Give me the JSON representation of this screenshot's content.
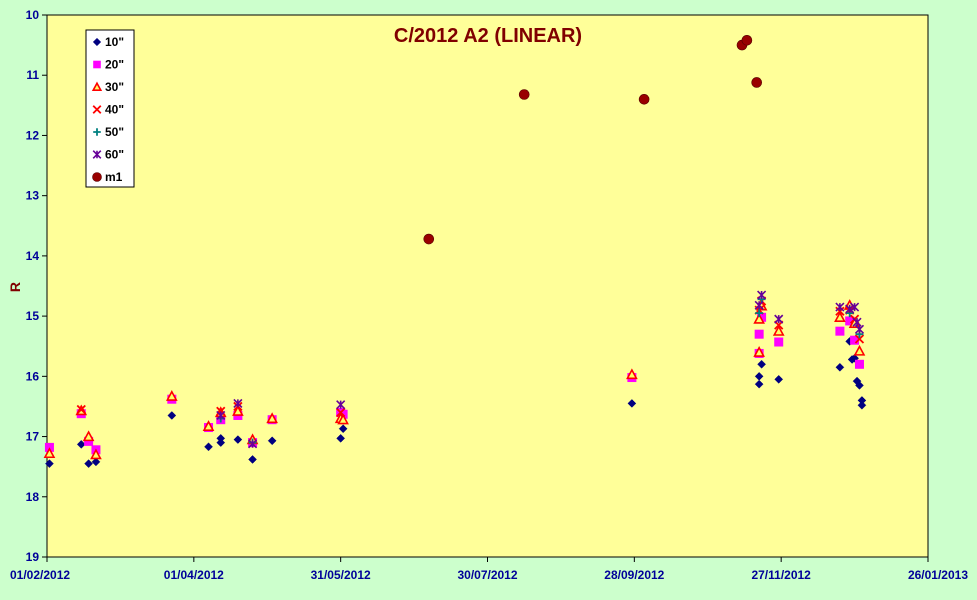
{
  "chart_data": {
    "type": "scatter",
    "title": "C/2012 A2 (LINEAR)",
    "xlabel": "",
    "ylabel": "R",
    "x_axis": {
      "type": "date",
      "range": [
        "2012-02-01",
        "2013-01-26"
      ],
      "tick_labels": [
        "01/02/2012",
        "01/04/2012",
        "31/05/2012",
        "30/07/2012",
        "28/09/2012",
        "27/11/2012",
        "26/01/2013"
      ]
    },
    "y_axis": {
      "inverted": true,
      "range": [
        10,
        19
      ],
      "tick_labels": [
        "10",
        "11",
        "12",
        "13",
        "14",
        "15",
        "16",
        "17",
        "18",
        "19"
      ]
    },
    "plot_background": "#ffff99",
    "page_background": "#ccffcc",
    "grid": false,
    "legend_position": "top-left",
    "series": [
      {
        "name": "10\"",
        "marker": "diamond",
        "color": "#000080",
        "points": [
          [
            "2012-02-02",
            17.45
          ],
          [
            "2012-02-15",
            17.13
          ],
          [
            "2012-02-18",
            17.45
          ],
          [
            "2012-02-21",
            17.42
          ],
          [
            "2012-03-23",
            16.65
          ],
          [
            "2012-04-07",
            17.17
          ],
          [
            "2012-04-12",
            17.03
          ],
          [
            "2012-04-12",
            17.1
          ],
          [
            "2012-04-19",
            17.05
          ],
          [
            "2012-04-25",
            17.38
          ],
          [
            "2012-05-03",
            17.07
          ],
          [
            "2012-05-31",
            17.03
          ],
          [
            "2012-06-01",
            16.87
          ],
          [
            "2012-09-27",
            16.45
          ],
          [
            "2012-11-18",
            16.0
          ],
          [
            "2012-11-18",
            16.13
          ],
          [
            "2012-11-19",
            15.8
          ],
          [
            "2012-11-26",
            16.05
          ],
          [
            "2012-12-21",
            15.85
          ],
          [
            "2012-12-25",
            15.42
          ],
          [
            "2012-12-26",
            15.72
          ],
          [
            "2012-12-27",
            15.7
          ],
          [
            "2012-12-28",
            16.08
          ],
          [
            "2012-12-29",
            16.15
          ],
          [
            "2012-12-30",
            16.4
          ],
          [
            "2012-12-30",
            16.48
          ]
        ]
      },
      {
        "name": "20\"",
        "marker": "square",
        "color": "#ff00ff",
        "points": [
          [
            "2012-02-02",
            17.18
          ],
          [
            "2012-02-15",
            16.62
          ],
          [
            "2012-02-18",
            17.08
          ],
          [
            "2012-02-21",
            17.22
          ],
          [
            "2012-03-23",
            16.38
          ],
          [
            "2012-04-07",
            16.85
          ],
          [
            "2012-04-12",
            16.72
          ],
          [
            "2012-04-19",
            16.65
          ],
          [
            "2012-04-25",
            17.1
          ],
          [
            "2012-05-03",
            16.72
          ],
          [
            "2012-05-31",
            16.6
          ],
          [
            "2012-06-01",
            16.63
          ],
          [
            "2012-09-27",
            16.02
          ],
          [
            "2012-11-18",
            15.3
          ],
          [
            "2012-11-18",
            15.62
          ],
          [
            "2012-11-19",
            15.02
          ],
          [
            "2012-11-26",
            15.43
          ],
          [
            "2012-12-21",
            15.25
          ],
          [
            "2012-12-25",
            15.08
          ],
          [
            "2012-12-27",
            15.4
          ],
          [
            "2012-12-29",
            15.8
          ]
        ]
      },
      {
        "name": "30\"",
        "marker": "triangle",
        "color": "#ff0000",
        "points": [
          [
            "2012-02-02",
            17.28
          ],
          [
            "2012-02-15",
            16.57
          ],
          [
            "2012-02-18",
            17.0
          ],
          [
            "2012-02-21",
            17.3
          ],
          [
            "2012-03-23",
            16.33
          ],
          [
            "2012-04-07",
            16.83
          ],
          [
            "2012-04-12",
            16.6
          ],
          [
            "2012-04-19",
            16.58
          ],
          [
            "2012-04-25",
            17.05
          ],
          [
            "2012-05-03",
            16.7
          ],
          [
            "2012-05-31",
            16.7
          ],
          [
            "2012-06-01",
            16.72
          ],
          [
            "2012-09-27",
            15.97
          ],
          [
            "2012-11-18",
            15.05
          ],
          [
            "2012-11-18",
            15.6
          ],
          [
            "2012-11-19",
            14.83
          ],
          [
            "2012-11-26",
            15.25
          ],
          [
            "2012-12-21",
            15.02
          ],
          [
            "2012-12-25",
            14.82
          ],
          [
            "2012-12-27",
            15.12
          ],
          [
            "2012-12-29",
            15.58
          ]
        ]
      },
      {
        "name": "40\"",
        "marker": "x",
        "color": "#ff0000",
        "points": [
          [
            "2012-02-15",
            16.55
          ],
          [
            "2012-04-12",
            16.58
          ],
          [
            "2012-04-19",
            16.5
          ],
          [
            "2012-05-31",
            16.6
          ],
          [
            "2012-11-18",
            14.9
          ],
          [
            "2012-11-19",
            14.75
          ],
          [
            "2012-11-26",
            15.15
          ],
          [
            "2012-12-21",
            14.92
          ],
          [
            "2012-12-25",
            14.9
          ],
          [
            "2012-12-27",
            15.05
          ],
          [
            "2012-12-29",
            15.38
          ]
        ]
      },
      {
        "name": "50\"",
        "marker": "plus",
        "color": "#008080",
        "points": [
          [
            "2012-04-12",
            16.7
          ],
          [
            "2012-04-25",
            17.1
          ],
          [
            "2012-11-18",
            14.95
          ],
          [
            "2012-11-19",
            14.72
          ],
          [
            "2012-12-25",
            14.95
          ],
          [
            "2012-12-29",
            15.3
          ]
        ]
      },
      {
        "name": "60\"",
        "marker": "star",
        "color": "#660099",
        "points": [
          [
            "2012-04-12",
            16.65
          ],
          [
            "2012-04-19",
            16.45
          ],
          [
            "2012-04-25",
            17.12
          ],
          [
            "2012-05-31",
            16.47
          ],
          [
            "2012-11-18",
            14.82
          ],
          [
            "2012-11-19",
            14.65
          ],
          [
            "2012-11-26",
            15.05
          ],
          [
            "2012-12-21",
            14.85
          ],
          [
            "2012-12-25",
            14.88
          ],
          [
            "2012-12-27",
            14.85
          ],
          [
            "2012-12-28",
            15.1
          ],
          [
            "2012-12-29",
            15.22
          ]
        ]
      },
      {
        "name": "m1",
        "marker": "circle",
        "color": "#990000",
        "points": [
          [
            "2012-07-06",
            13.72
          ],
          [
            "2012-08-14",
            11.32
          ],
          [
            "2012-10-02",
            11.4
          ],
          [
            "2012-11-11",
            10.5
          ],
          [
            "2012-11-13",
            10.42
          ],
          [
            "2012-11-17",
            11.12
          ]
        ]
      }
    ]
  }
}
